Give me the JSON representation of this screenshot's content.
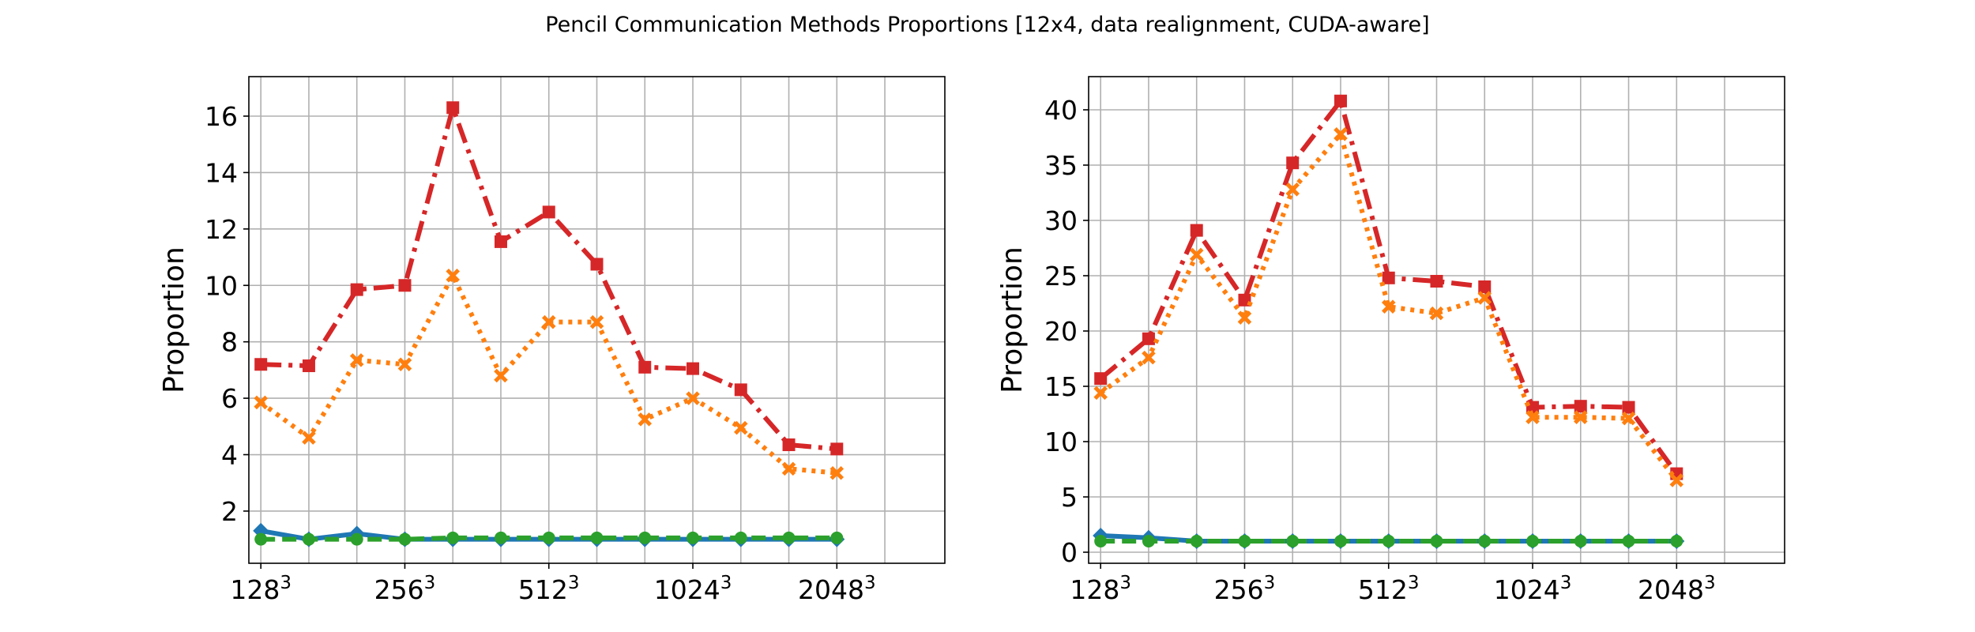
{
  "figure": {
    "title": "Pencil Communication Methods Proportions [12x4, data realignment, CUDA-aware]"
  },
  "chart_data": [
    {
      "type": "line",
      "title": "",
      "xlabel": "",
      "ylabel": "Proportion",
      "x": [
        1,
        2,
        3,
        4,
        5,
        6,
        7,
        8,
        9,
        10,
        11,
        12,
        13,
        14,
        15
      ],
      "xlim": [
        0.75,
        15.25
      ],
      "ylim": [
        0.15,
        17.4
      ],
      "xticks": [
        {
          "x": 1,
          "base": "128",
          "exp": "3"
        },
        {
          "x": 4,
          "base": "256",
          "exp": "3"
        },
        {
          "x": 7,
          "base": "512",
          "exp": "3"
        },
        {
          "x": 10,
          "base": "1024",
          "exp": "3"
        },
        {
          "x": 13,
          "base": "2048",
          "exp": "3"
        }
      ],
      "yticks": [
        "2",
        "4",
        "6",
        "8",
        "10",
        "12",
        "14",
        "16"
      ],
      "grid": true,
      "series": [
        {
          "color": "#d62728",
          "marker": "square",
          "dash": "dashdot",
          "values": [
            7.2,
            7.15,
            9.85,
            10.0,
            16.3,
            11.55,
            12.6,
            10.75,
            7.1,
            7.05,
            6.3,
            4.35,
            4.2
          ],
          "x": [
            1,
            2,
            3,
            4,
            5,
            6,
            7,
            8,
            9,
            10,
            11,
            12,
            13
          ]
        },
        {
          "color": "#ff7f0e",
          "marker": "x",
          "dash": "dotted",
          "values": [
            5.85,
            4.6,
            7.35,
            7.2,
            10.35,
            6.8,
            8.7,
            8.7,
            5.25,
            6.0,
            4.95,
            3.5,
            3.35
          ],
          "x": [
            1,
            2,
            3,
            4,
            5,
            6,
            7,
            8,
            9,
            10,
            11,
            12,
            13
          ]
        },
        {
          "color": "#1f77b4",
          "marker": "diamond",
          "dash": "solid",
          "values": [
            1.3,
            1.0,
            1.2,
            1.0,
            1.0,
            1.0,
            1.0,
            1.0,
            1.0,
            1.0,
            1.0,
            1.0,
            1.0
          ],
          "x": [
            1,
            2,
            3,
            4,
            5,
            6,
            7,
            8,
            9,
            10,
            11,
            12,
            13
          ]
        },
        {
          "color": "#2ca02c",
          "marker": "circle",
          "dash": "dashed",
          "values": [
            1.0,
            1.0,
            1.0,
            1.0,
            1.05,
            1.05,
            1.05,
            1.05,
            1.05,
            1.05,
            1.05,
            1.05,
            1.05
          ],
          "x": [
            1,
            2,
            3,
            4,
            5,
            6,
            7,
            8,
            9,
            10,
            11,
            12,
            13
          ]
        }
      ]
    },
    {
      "type": "line",
      "title": "",
      "xlabel": "",
      "ylabel": "Proportion",
      "xlim": [
        0.75,
        15.25
      ],
      "ylim": [
        -1.0,
        43.0
      ],
      "xticks": [
        {
          "x": 1,
          "base": "128",
          "exp": "3"
        },
        {
          "x": 4,
          "base": "256",
          "exp": "3"
        },
        {
          "x": 7,
          "base": "512",
          "exp": "3"
        },
        {
          "x": 10,
          "base": "1024",
          "exp": "3"
        },
        {
          "x": 13,
          "base": "2048",
          "exp": "3"
        }
      ],
      "yticks": [
        "0",
        "5",
        "10",
        "15",
        "20",
        "25",
        "30",
        "35",
        "40"
      ],
      "grid": true,
      "series": [
        {
          "color": "#d62728",
          "marker": "square",
          "dash": "dashdot",
          "values": [
            15.7,
            19.3,
            29.1,
            22.8,
            35.2,
            40.8,
            24.8,
            24.5,
            24.0,
            13.1,
            13.2,
            13.1,
            7.1
          ],
          "x": [
            1,
            2,
            3,
            4,
            5,
            6,
            7,
            8,
            9,
            10,
            11,
            12,
            13
          ]
        },
        {
          "color": "#ff7f0e",
          "marker": "x",
          "dash": "dotted",
          "values": [
            14.4,
            17.6,
            26.9,
            21.2,
            32.8,
            37.8,
            22.2,
            21.6,
            23.0,
            12.2,
            12.2,
            12.1,
            6.5
          ],
          "x": [
            1,
            2,
            3,
            4,
            5,
            6,
            7,
            8,
            9,
            10,
            11,
            12,
            13
          ]
        },
        {
          "color": "#1f77b4",
          "marker": "diamond",
          "dash": "solid",
          "values": [
            1.5,
            1.3,
            1.0,
            1.0,
            1.0,
            1.0,
            1.0,
            1.0,
            1.0,
            1.0,
            1.0,
            1.0,
            1.0
          ],
          "x": [
            1,
            2,
            3,
            4,
            5,
            6,
            7,
            8,
            9,
            10,
            11,
            12,
            13
          ]
        },
        {
          "color": "#2ca02c",
          "marker": "circle",
          "dash": "dashed",
          "values": [
            1.0,
            1.0,
            1.0,
            1.0,
            1.0,
            1.0,
            1.0,
            1.0,
            1.0,
            1.0,
            1.0,
            1.0,
            1.0
          ],
          "x": [
            1,
            2,
            3,
            4,
            5,
            6,
            7,
            8,
            9,
            10,
            11,
            12,
            13
          ]
        }
      ]
    }
  ]
}
